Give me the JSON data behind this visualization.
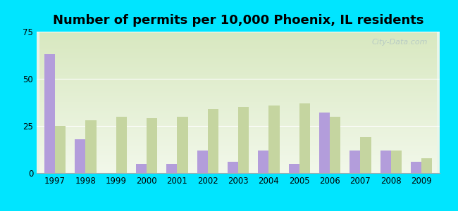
{
  "title": "Number of permits per 10,000 Phoenix, IL residents",
  "years": [
    1997,
    1998,
    1999,
    2000,
    2001,
    2002,
    2003,
    2004,
    2005,
    2006,
    2007,
    2008,
    2009
  ],
  "phoenix": [
    63,
    18,
    0,
    5,
    5,
    12,
    6,
    12,
    5,
    32,
    12,
    12,
    6
  ],
  "illinois": [
    25,
    28,
    30,
    29,
    30,
    34,
    35,
    36,
    37,
    30,
    19,
    12,
    8
  ],
  "phoenix_color": "#b39ddb",
  "illinois_color": "#c5d5a0",
  "background_top": "#e8f5e9",
  "background_bottom": "#f1f8e9",
  "ylim": [
    0,
    75
  ],
  "yticks": [
    0,
    25,
    50,
    75
  ],
  "bar_width": 0.35,
  "outer_bg": "#00e5ff",
  "plot_bg_top": "#dce8d0",
  "plot_bg_bottom": "#f5faf0",
  "title_fontsize": 13,
  "tick_fontsize": 8.5,
  "legend_fontsize": 9.5
}
